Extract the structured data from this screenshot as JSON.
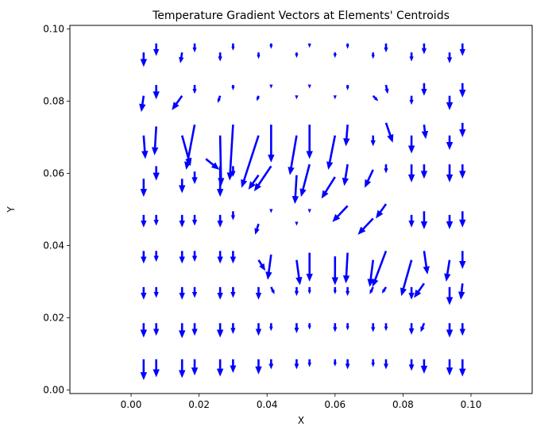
{
  "chart_data": {
    "type": "quiver",
    "title": "Temperature Gradient Vectors at Elements' Centroids",
    "xlabel": "X",
    "ylabel": "Y",
    "xlim": [
      -0.018,
      0.118
    ],
    "ylim": [
      -0.001,
      0.101
    ],
    "x_ticks": [
      0.0,
      0.02,
      0.04,
      0.06,
      0.08,
      0.1
    ],
    "x_tick_labels": [
      "0.00",
      "0.02",
      "0.04",
      "0.06",
      "0.08",
      "0.10"
    ],
    "y_ticks": [
      0.0,
      0.02,
      0.04,
      0.06,
      0.08,
      0.1
    ],
    "y_tick_labels": [
      "0.00",
      "0.02",
      "0.04",
      "0.06",
      "0.08",
      "0.10"
    ],
    "grid": false,
    "arrow_color": "#0000ff",
    "vector_units": "data units (x, y)",
    "vectors": [
      {
        "x": 0.0037,
        "y": 0.0085,
        "u": 0.0,
        "v": -0.0058
      },
      {
        "x": 0.0074,
        "y": 0.0085,
        "u": 0.0,
        "v": -0.005
      },
      {
        "x": 0.015,
        "y": 0.0085,
        "u": 0.0,
        "v": -0.0052
      },
      {
        "x": 0.0187,
        "y": 0.0085,
        "u": 0.0,
        "v": -0.0045
      },
      {
        "x": 0.0262,
        "y": 0.0085,
        "u": 0.0,
        "v": -0.0048
      },
      {
        "x": 0.03,
        "y": 0.0085,
        "u": 0.0,
        "v": -0.0038
      },
      {
        "x": 0.0375,
        "y": 0.0085,
        "u": 0.0,
        "v": -0.0042
      },
      {
        "x": 0.0412,
        "y": 0.0085,
        "u": 0.0,
        "v": -0.0028
      },
      {
        "x": 0.0487,
        "y": 0.0085,
        "u": 0.0,
        "v": -0.0028
      },
      {
        "x": 0.0525,
        "y": 0.0085,
        "u": 0.0,
        "v": -0.0022
      },
      {
        "x": 0.06,
        "y": 0.0085,
        "u": 0.0,
        "v": -0.002
      },
      {
        "x": 0.0637,
        "y": 0.0085,
        "u": 0.0,
        "v": -0.0028
      },
      {
        "x": 0.0712,
        "y": 0.0085,
        "u": 0.0,
        "v": -0.0022
      },
      {
        "x": 0.075,
        "y": 0.0085,
        "u": 0.0,
        "v": -0.0028
      },
      {
        "x": 0.0825,
        "y": 0.0085,
        "u": 0.0,
        "v": -0.0032
      },
      {
        "x": 0.0862,
        "y": 0.0085,
        "u": 0.0,
        "v": -0.004
      },
      {
        "x": 0.0937,
        "y": 0.0085,
        "u": 0.0,
        "v": -0.0045
      },
      {
        "x": 0.0975,
        "y": 0.0085,
        "u": 0.0,
        "v": -0.0048
      },
      {
        "x": 0.0037,
        "y": 0.0185,
        "u": 0.0,
        "v": -0.004
      },
      {
        "x": 0.0074,
        "y": 0.0185,
        "u": 0.0,
        "v": -0.0035
      },
      {
        "x": 0.015,
        "y": 0.0185,
        "u": 0.0,
        "v": -0.0042
      },
      {
        "x": 0.0187,
        "y": 0.0185,
        "u": 0.0,
        "v": -0.0035
      },
      {
        "x": 0.0262,
        "y": 0.0185,
        "u": 0.0,
        "v": -0.004
      },
      {
        "x": 0.03,
        "y": 0.0185,
        "u": 0.0,
        "v": -0.003
      },
      {
        "x": 0.0375,
        "y": 0.0185,
        "u": 0.0,
        "v": -0.0035
      },
      {
        "x": 0.0412,
        "y": 0.0185,
        "u": 0.0,
        "v": -0.0022
      },
      {
        "x": 0.0487,
        "y": 0.0185,
        "u": 0.0,
        "v": -0.0028
      },
      {
        "x": 0.0525,
        "y": 0.0185,
        "u": 0.0,
        "v": -0.0018
      },
      {
        "x": 0.06,
        "y": 0.0185,
        "u": 0.0,
        "v": -0.0025
      },
      {
        "x": 0.0637,
        "y": 0.0185,
        "u": 0.0,
        "v": -0.002
      },
      {
        "x": 0.0712,
        "y": 0.0185,
        "u": 0.0,
        "v": -0.0025
      },
      {
        "x": 0.075,
        "y": 0.0185,
        "u": 0.0,
        "v": -0.0022
      },
      {
        "x": 0.0825,
        "y": 0.0185,
        "u": 0.0,
        "v": -0.0032
      },
      {
        "x": 0.0862,
        "y": 0.0185,
        "u": -0.001,
        "v": -0.0025
      },
      {
        "x": 0.0937,
        "y": 0.0185,
        "u": 0.0,
        "v": -0.004
      },
      {
        "x": 0.0975,
        "y": 0.0185,
        "u": 0.0,
        "v": -0.0035
      },
      {
        "x": 0.0037,
        "y": 0.0285,
        "u": 0.0,
        "v": -0.0035
      },
      {
        "x": 0.0074,
        "y": 0.0285,
        "u": 0.0,
        "v": -0.003
      },
      {
        "x": 0.015,
        "y": 0.0285,
        "u": 0.0,
        "v": -0.0035
      },
      {
        "x": 0.0187,
        "y": 0.0285,
        "u": 0.0,
        "v": -0.003
      },
      {
        "x": 0.0262,
        "y": 0.0285,
        "u": 0.0,
        "v": -0.0035
      },
      {
        "x": 0.03,
        "y": 0.0285,
        "u": 0.0,
        "v": -0.003
      },
      {
        "x": 0.0375,
        "y": 0.0285,
        "u": 0.0,
        "v": -0.0035
      },
      {
        "x": 0.0412,
        "y": 0.0285,
        "u": 0.001,
        "v": -0.002
      },
      {
        "x": 0.0487,
        "y": 0.0285,
        "u": 0.0,
        "v": -0.0025
      },
      {
        "x": 0.0525,
        "y": 0.0285,
        "u": 0.0,
        "v": -0.002
      },
      {
        "x": 0.06,
        "y": 0.0285,
        "u": 0.0,
        "v": -0.002
      },
      {
        "x": 0.0637,
        "y": 0.0285,
        "u": 0.0,
        "v": -0.0025
      },
      {
        "x": 0.0712,
        "y": 0.0285,
        "u": -0.001,
        "v": -0.002
      },
      {
        "x": 0.075,
        "y": 0.0285,
        "u": -0.0012,
        "v": -0.0018
      },
      {
        "x": 0.0825,
        "y": 0.0285,
        "u": 0.0,
        "v": -0.0035
      },
      {
        "x": 0.0862,
        "y": 0.0295,
        "u": -0.003,
        "v": -0.004
      },
      {
        "x": 0.0937,
        "y": 0.0285,
        "u": 0.0,
        "v": -0.005
      },
      {
        "x": 0.0975,
        "y": 0.0295,
        "u": -0.0005,
        "v": -0.0045
      },
      {
        "x": 0.0037,
        "y": 0.0385,
        "u": 0.0,
        "v": -0.0035
      },
      {
        "x": 0.0074,
        "y": 0.0385,
        "u": 0.0,
        "v": -0.003
      },
      {
        "x": 0.015,
        "y": 0.0385,
        "u": 0.0,
        "v": -0.0035
      },
      {
        "x": 0.0187,
        "y": 0.0385,
        "u": 0.0,
        "v": -0.003
      },
      {
        "x": 0.0262,
        "y": 0.0385,
        "u": 0.0,
        "v": -0.0035
      },
      {
        "x": 0.03,
        "y": 0.0385,
        "u": 0.0,
        "v": -0.0035
      },
      {
        "x": 0.0375,
        "y": 0.036,
        "u": 0.002,
        "v": -0.003
      },
      {
        "x": 0.0412,
        "y": 0.0375,
        "u": -0.001,
        "v": -0.007
      },
      {
        "x": 0.0487,
        "y": 0.036,
        "u": 0.001,
        "v": -0.007
      },
      {
        "x": 0.0525,
        "y": 0.038,
        "u": 0.0,
        "v": -0.008
      },
      {
        "x": 0.06,
        "y": 0.037,
        "u": 0.0,
        "v": -0.008
      },
      {
        "x": 0.0637,
        "y": 0.038,
        "u": -0.0005,
        "v": -0.0085
      },
      {
        "x": 0.0712,
        "y": 0.036,
        "u": -0.001,
        "v": -0.0075
      },
      {
        "x": 0.075,
        "y": 0.0385,
        "u": -0.004,
        "v": -0.01
      },
      {
        "x": 0.0825,
        "y": 0.036,
        "u": -0.003,
        "v": -0.01
      },
      {
        "x": 0.0862,
        "y": 0.0385,
        "u": 0.001,
        "v": -0.0065
      },
      {
        "x": 0.0937,
        "y": 0.036,
        "u": -0.001,
        "v": -0.006
      },
      {
        "x": 0.0975,
        "y": 0.0385,
        "u": 0.0,
        "v": -0.005
      },
      {
        "x": 0.0037,
        "y": 0.0485,
        "u": 0.0,
        "v": -0.0035
      },
      {
        "x": 0.0074,
        "y": 0.0485,
        "u": 0.0,
        "v": -0.003
      },
      {
        "x": 0.015,
        "y": 0.0485,
        "u": 0.0,
        "v": -0.0035
      },
      {
        "x": 0.0187,
        "y": 0.0485,
        "u": 0.0,
        "v": -0.003
      },
      {
        "x": 0.0262,
        "y": 0.0485,
        "u": 0.0,
        "v": -0.0035
      },
      {
        "x": 0.03,
        "y": 0.0495,
        "u": 0.0,
        "v": -0.0025
      },
      {
        "x": 0.0375,
        "y": 0.046,
        "u": -0.001,
        "v": -0.003
      },
      {
        "x": 0.0412,
        "y": 0.0495,
        "u": 0.0,
        "v": -0.0005
      },
      {
        "x": 0.0487,
        "y": 0.0465,
        "u": 0.0,
        "v": -0.001
      },
      {
        "x": 0.0525,
        "y": 0.05,
        "u": 0.0,
        "v": -0.001
      },
      {
        "x": 0.0637,
        "y": 0.051,
        "u": -0.0045,
        "v": -0.0045
      },
      {
        "x": 0.0712,
        "y": 0.0475,
        "u": -0.0045,
        "v": -0.0045
      },
      {
        "x": 0.075,
        "y": 0.0515,
        "u": -0.003,
        "v": -0.004
      },
      {
        "x": 0.0825,
        "y": 0.0485,
        "u": 0.0,
        "v": -0.0035
      },
      {
        "x": 0.0862,
        "y": 0.0495,
        "u": 0.0,
        "v": -0.005
      },
      {
        "x": 0.0937,
        "y": 0.0485,
        "u": 0.0,
        "v": -0.004
      },
      {
        "x": 0.0975,
        "y": 0.0495,
        "u": 0.0,
        "v": -0.0045
      },
      {
        "x": 0.0037,
        "y": 0.0585,
        "u": 0.0,
        "v": -0.005
      },
      {
        "x": 0.0074,
        "y": 0.062,
        "u": 0.0,
        "v": -0.004
      },
      {
        "x": 0.015,
        "y": 0.0585,
        "u": 0.0,
        "v": -0.004
      },
      {
        "x": 0.0187,
        "y": 0.0605,
        "u": 0.0,
        "v": -0.0035
      },
      {
        "x": 0.022,
        "y": 0.064,
        "u": 0.004,
        "v": -0.003
      },
      {
        "x": 0.0262,
        "y": 0.062,
        "u": 0.0,
        "v": -0.0085
      },
      {
        "x": 0.03,
        "y": 0.062,
        "u": 0.0,
        "v": -0.003
      },
      {
        "x": 0.0375,
        "y": 0.0595,
        "u": -0.003,
        "v": -0.004
      },
      {
        "x": 0.0412,
        "y": 0.062,
        "u": -0.005,
        "v": -0.007
      },
      {
        "x": 0.0487,
        "y": 0.0595,
        "u": -0.0005,
        "v": -0.008
      },
      {
        "x": 0.0525,
        "y": 0.0625,
        "u": -0.0025,
        "v": -0.009
      },
      {
        "x": 0.06,
        "y": 0.059,
        "u": -0.004,
        "v": -0.006
      },
      {
        "x": 0.0637,
        "y": 0.0625,
        "u": -0.001,
        "v": -0.006
      },
      {
        "x": 0.0712,
        "y": 0.061,
        "u": -0.0025,
        "v": -0.005
      },
      {
        "x": 0.075,
        "y": 0.0625,
        "u": 0.0,
        "v": -0.0025
      },
      {
        "x": 0.0825,
        "y": 0.0625,
        "u": 0.0,
        "v": -0.005
      },
      {
        "x": 0.0862,
        "y": 0.0625,
        "u": 0.0,
        "v": -0.004
      },
      {
        "x": 0.0937,
        "y": 0.0625,
        "u": 0.0,
        "v": -0.005
      },
      {
        "x": 0.0975,
        "y": 0.0625,
        "u": 0.0,
        "v": -0.004
      },
      {
        "x": 0.0037,
        "y": 0.0705,
        "u": 0.0005,
        "v": -0.0065
      },
      {
        "x": 0.0074,
        "y": 0.073,
        "u": -0.0005,
        "v": -0.008
      },
      {
        "x": 0.015,
        "y": 0.0705,
        "u": 0.0025,
        "v": -0.0085
      },
      {
        "x": 0.0187,
        "y": 0.0735,
        "u": -0.0025,
        "v": -0.0125
      },
      {
        "x": 0.0262,
        "y": 0.0705,
        "u": 0.0003,
        "v": -0.014
      },
      {
        "x": 0.03,
        "y": 0.0735,
        "u": -0.001,
        "v": -0.0155
      },
      {
        "x": 0.0375,
        "y": 0.0705,
        "u": -0.005,
        "v": -0.0145
      },
      {
        "x": 0.0412,
        "y": 0.0735,
        "u": 0.0,
        "v": -0.0105
      },
      {
        "x": 0.0487,
        "y": 0.0705,
        "u": -0.002,
        "v": -0.011
      },
      {
        "x": 0.0525,
        "y": 0.0735,
        "u": 0.0,
        "v": -0.0095
      },
      {
        "x": 0.06,
        "y": 0.0705,
        "u": -0.002,
        "v": -0.0095
      },
      {
        "x": 0.0637,
        "y": 0.0735,
        "u": -0.0005,
        "v": -0.006
      },
      {
        "x": 0.0712,
        "y": 0.0705,
        "u": 0.0,
        "v": -0.003
      },
      {
        "x": 0.075,
        "y": 0.074,
        "u": 0.002,
        "v": -0.0055
      },
      {
        "x": 0.0825,
        "y": 0.0705,
        "u": 0.0,
        "v": -0.005
      },
      {
        "x": 0.0862,
        "y": 0.0735,
        "u": 0.0005,
        "v": -0.004
      },
      {
        "x": 0.0937,
        "y": 0.0705,
        "u": 0.0,
        "v": -0.004
      },
      {
        "x": 0.0975,
        "y": 0.074,
        "u": 0.0,
        "v": -0.004
      },
      {
        "x": 0.0037,
        "y": 0.0815,
        "u": -0.0007,
        "v": -0.0045
      },
      {
        "x": 0.0074,
        "y": 0.0845,
        "u": 0.0,
        "v": -0.004
      },
      {
        "x": 0.015,
        "y": 0.0815,
        "u": -0.003,
        "v": -0.004
      },
      {
        "x": 0.0187,
        "y": 0.0845,
        "u": 0.0,
        "v": -0.0025
      },
      {
        "x": 0.0262,
        "y": 0.0815,
        "u": -0.0007,
        "v": -0.002
      },
      {
        "x": 0.03,
        "y": 0.0845,
        "u": 0.0,
        "v": -0.0015
      },
      {
        "x": 0.0375,
        "y": 0.0815,
        "u": -0.0005,
        "v": -0.0015
      },
      {
        "x": 0.0412,
        "y": 0.0845,
        "u": 0.0,
        "v": -0.001
      },
      {
        "x": 0.0487,
        "y": 0.0815,
        "u": 0.0,
        "v": -0.001
      },
      {
        "x": 0.0525,
        "y": 0.0845,
        "u": 0.0,
        "v": -0.001
      },
      {
        "x": 0.06,
        "y": 0.0815,
        "u": 0.0,
        "v": -0.001
      },
      {
        "x": 0.0637,
        "y": 0.0845,
        "u": 0.0,
        "v": -0.0015
      },
      {
        "x": 0.0712,
        "y": 0.0815,
        "u": 0.0015,
        "v": -0.0015
      },
      {
        "x": 0.075,
        "y": 0.0845,
        "u": 0.0005,
        "v": -0.0025
      },
      {
        "x": 0.0825,
        "y": 0.0815,
        "u": 0.0,
        "v": -0.0025
      },
      {
        "x": 0.0862,
        "y": 0.085,
        "u": 0.0,
        "v": -0.0035
      },
      {
        "x": 0.0937,
        "y": 0.0815,
        "u": 0.0,
        "v": -0.004
      },
      {
        "x": 0.0975,
        "y": 0.085,
        "u": 0.0,
        "v": -0.004
      },
      {
        "x": 0.0037,
        "y": 0.0935,
        "u": 0.0,
        "v": -0.004
      },
      {
        "x": 0.0074,
        "y": 0.096,
        "u": 0.0,
        "v": -0.0035
      },
      {
        "x": 0.015,
        "y": 0.0935,
        "u": -0.0005,
        "v": -0.003
      },
      {
        "x": 0.0187,
        "y": 0.096,
        "u": 0.0,
        "v": -0.0025
      },
      {
        "x": 0.0262,
        "y": 0.0935,
        "u": 0.0,
        "v": -0.0025
      },
      {
        "x": 0.03,
        "y": 0.096,
        "u": 0.0,
        "v": -0.002
      },
      {
        "x": 0.0375,
        "y": 0.0935,
        "u": 0.0,
        "v": -0.0018
      },
      {
        "x": 0.0412,
        "y": 0.096,
        "u": 0.0,
        "v": -0.0015
      },
      {
        "x": 0.0487,
        "y": 0.0935,
        "u": 0.0,
        "v": -0.0015
      },
      {
        "x": 0.0525,
        "y": 0.096,
        "u": 0.0,
        "v": -0.0012
      },
      {
        "x": 0.06,
        "y": 0.0935,
        "u": 0.0,
        "v": -0.0015
      },
      {
        "x": 0.0637,
        "y": 0.096,
        "u": 0.0,
        "v": -0.0015
      },
      {
        "x": 0.0712,
        "y": 0.0935,
        "u": 0.0,
        "v": -0.0018
      },
      {
        "x": 0.075,
        "y": 0.096,
        "u": 0.0,
        "v": -0.0025
      },
      {
        "x": 0.0825,
        "y": 0.0935,
        "u": 0.0,
        "v": -0.0025
      },
      {
        "x": 0.0862,
        "y": 0.096,
        "u": 0.0,
        "v": -0.003
      },
      {
        "x": 0.0937,
        "y": 0.0935,
        "u": 0.0,
        "v": -0.003
      },
      {
        "x": 0.0975,
        "y": 0.096,
        "u": 0.0,
        "v": -0.0035
      }
    ]
  }
}
